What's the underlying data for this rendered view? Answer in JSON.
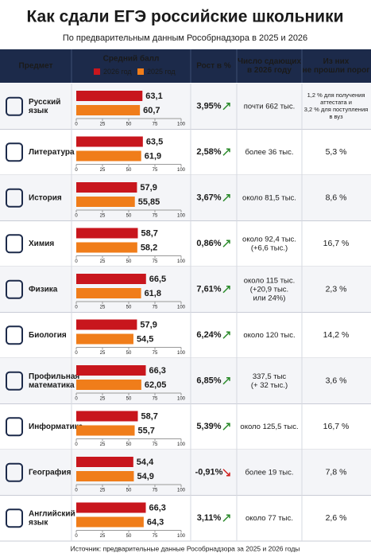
{
  "title": "Как сдали ЕГЭ российские школьники",
  "subtitle": "По предварительным данным Рособрнадзора в 2025 и 2026",
  "header": {
    "subject": "Предмет",
    "score": "Средний балл",
    "legend": [
      {
        "name": "2026 год",
        "color": "#c8161d"
      },
      {
        "name": "2025 год",
        "color": "#f07d1a"
      }
    ],
    "growth": "Рост в %",
    "takers": [
      "Число сдающих",
      "в 2026 году"
    ],
    "failed": [
      "Из них",
      "не прошли порог"
    ]
  },
  "axis": {
    "lim": [
      0,
      100
    ],
    "ticks": [
      0,
      25,
      50,
      75,
      100
    ]
  },
  "rows": [
    {
      "subject": [
        "Русский",
        "язык"
      ],
      "values": [
        63.1,
        60.7
      ],
      "value_labels": [
        "63,1",
        "60,7"
      ],
      "growth": "3,95%",
      "trend": "up",
      "takers": [
        "почти 662 тыс."
      ],
      "failed": [
        "1,2 % для получения",
        "аттестата и",
        "3,2 % для поступления",
        "в вуз"
      ]
    },
    {
      "subject": [
        "Литература"
      ],
      "values": [
        63.5,
        61.9
      ],
      "value_labels": [
        "63,5",
        "61,9"
      ],
      "growth": "2,58%",
      "trend": "up",
      "takers": [
        "более 36 тыс."
      ],
      "failed": [
        "5,3 %"
      ]
    },
    {
      "subject": [
        "История"
      ],
      "values": [
        57.9,
        55.85
      ],
      "value_labels": [
        "57,9",
        "55,85"
      ],
      "growth": "3,67%",
      "trend": "up",
      "takers": [
        "около 81,5 тыс."
      ],
      "failed": [
        "8,6 %"
      ]
    },
    {
      "subject": [
        "Химия"
      ],
      "values": [
        58.7,
        58.2
      ],
      "value_labels": [
        "58,7",
        "58,2"
      ],
      "growth": "0,86%",
      "trend": "up",
      "takers": [
        "около 92,4 тыс.",
        "(+6,6 тыс.)"
      ],
      "failed": [
        "16,7 %"
      ]
    },
    {
      "subject": [
        "Физика"
      ],
      "values": [
        66.5,
        61.8
      ],
      "value_labels": [
        "66,5",
        "61,8"
      ],
      "growth": "7,61%",
      "trend": "up",
      "takers": [
        "около 115 тыс.",
        "(+20,9 тыс.",
        "или 24%)"
      ],
      "failed": [
        "2,3 %"
      ]
    },
    {
      "subject": [
        "Биология"
      ],
      "values": [
        57.9,
        54.5
      ],
      "value_labels": [
        "57,9",
        "54,5"
      ],
      "growth": "6,24%",
      "trend": "up",
      "takers": [
        "около 120 тыс."
      ],
      "failed": [
        "14,2 %"
      ]
    },
    {
      "subject": [
        "Профильная",
        "математика"
      ],
      "values": [
        66.3,
        62.05
      ],
      "value_labels": [
        "66,3",
        "62,05"
      ],
      "growth": "6,85%",
      "trend": "up",
      "takers": [
        "337,5 тыс",
        "(+ 32 тыс.)"
      ],
      "failed": [
        "3,6 %"
      ]
    },
    {
      "subject": [
        "Информатика"
      ],
      "values": [
        58.7,
        55.7
      ],
      "value_labels": [
        "58,7",
        "55,7"
      ],
      "growth": "5,39%",
      "trend": "up",
      "takers": [
        "около 125,5 тыс."
      ],
      "failed": [
        "16,7 %"
      ]
    },
    {
      "subject": [
        "География"
      ],
      "values": [
        54.4,
        54.9
      ],
      "value_labels": [
        "54,4",
        "54,9"
      ],
      "growth": "-0,91%",
      "trend": "down",
      "takers": [
        "более 19 тыс."
      ],
      "failed": [
        "7,8 %"
      ]
    },
    {
      "subject": [
        "Английский",
        "язык"
      ],
      "values": [
        66.3,
        64.3
      ],
      "value_labels": [
        "66,3",
        "64,3"
      ],
      "growth": "3,11%",
      "trend": "up",
      "takers": [
        "около 77 тыс."
      ],
      "failed": [
        "2,6 %"
      ]
    }
  ],
  "source": "Источник: предварительные данные Рособрнадзора за 2025 и 2026 годы"
}
